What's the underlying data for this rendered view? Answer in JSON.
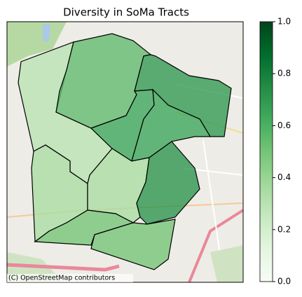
{
  "chart_data": {
    "type": "choropleth",
    "title": "Diversity in SoMa Tracts",
    "attribution": "(C) OpenStreetMap contributors",
    "colormap": "Greens",
    "values": [
      0.3,
      0.55,
      0.7,
      0.65,
      0.65,
      0.35,
      0.35,
      0.72,
      0.5,
      0.5
    ],
    "clim": [
      0,
      1
    ],
    "cticks": [
      {
        "value": 0,
        "label": "0.0"
      },
      {
        "value": 0.2,
        "label": "0.2"
      },
      {
        "value": 0.4,
        "label": "0.4"
      },
      {
        "value": 0.6,
        "label": "0.6"
      },
      {
        "value": 0.8,
        "label": "0.8"
      },
      {
        "value": 1,
        "label": "1.0"
      }
    ]
  }
}
